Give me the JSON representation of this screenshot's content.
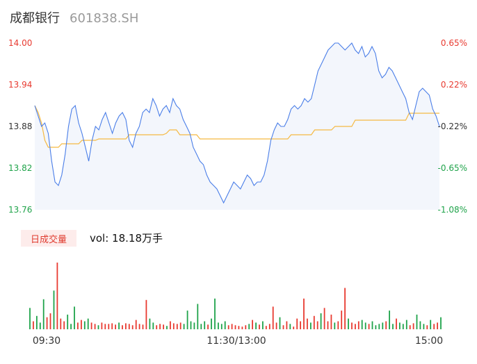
{
  "header": {
    "name": "成都银行",
    "code": "601838.SH"
  },
  "colors": {
    "price_line": "#4a7ee8",
    "avg_line": "#f5b942",
    "area_fill": "#f3f6fc",
    "up": "#e83a30",
    "down": "#1fa34a",
    "neutral": "#333333"
  },
  "volume": {
    "tag": "日成交量",
    "text": "vol: 18.18万手"
  },
  "chart_data": [
    {
      "type": "line",
      "series": [],
      "x": [
        0,
        1,
        2,
        3,
        4,
        5,
        6,
        7,
        8,
        9,
        10,
        11,
        12,
        13,
        14,
        15,
        16,
        17,
        18,
        19,
        20,
        21,
        22,
        23,
        24,
        25,
        26,
        27,
        28,
        29,
        30,
        31,
        32,
        33,
        34,
        35,
        36,
        37,
        38,
        39,
        40,
        41,
        42,
        43,
        44,
        45,
        46,
        47,
        48,
        49,
        50,
        51,
        52,
        53,
        54,
        55,
        56,
        57,
        58,
        59,
        60,
        61,
        62,
        63,
        64,
        65,
        66,
        67,
        68,
        69,
        70,
        71,
        72,
        73,
        74,
        75,
        76,
        77,
        78,
        79,
        80,
        81,
        82,
        83,
        84,
        85,
        86,
        87,
        88,
        89,
        90,
        91,
        92,
        93,
        94,
        95,
        96,
        97,
        98,
        99,
        100,
        101,
        102,
        103,
        104,
        105,
        106,
        107,
        108,
        109,
        110,
        111,
        112,
        113,
        114,
        115,
        116,
        117,
        118,
        119,
        120
      ],
      "price": [
        13.91,
        13.895,
        13.88,
        13.885,
        13.87,
        13.83,
        13.8,
        13.795,
        13.81,
        13.84,
        13.88,
        13.905,
        13.91,
        13.885,
        13.87,
        13.85,
        13.83,
        13.86,
        13.88,
        13.875,
        13.89,
        13.9,
        13.885,
        13.87,
        13.885,
        13.895,
        13.9,
        13.89,
        13.86,
        13.85,
        13.87,
        13.88,
        13.9,
        13.905,
        13.9,
        13.92,
        13.91,
        13.895,
        13.905,
        13.91,
        13.9,
        13.92,
        13.91,
        13.905,
        13.89,
        13.88,
        13.87,
        13.85,
        13.84,
        13.83,
        13.825,
        13.81,
        13.8,
        13.795,
        13.79,
        13.78,
        13.77,
        13.78,
        13.79,
        13.8,
        13.795,
        13.79,
        13.8,
        13.81,
        13.805,
        13.795,
        13.8,
        13.8,
        13.81,
        13.83,
        13.86,
        13.875,
        13.885,
        13.88,
        13.88,
        13.89,
        13.905,
        13.91,
        13.905,
        13.91,
        13.92,
        13.915,
        13.92,
        13.94,
        13.96,
        13.97,
        13.98,
        13.99,
        13.995,
        14.0,
        14.0,
        13.995,
        13.99,
        13.995,
        14.0,
        13.99,
        13.985,
        13.995,
        13.98,
        13.985,
        13.995,
        13.985,
        13.96,
        13.95,
        13.955,
        13.965,
        13.96,
        13.95,
        13.94,
        13.93,
        13.92,
        13.9,
        13.89,
        13.91,
        13.93,
        13.935,
        13.93,
        13.925,
        13.905,
        13.895,
        13.88
      ],
      "average": [
        13.91,
        13.9,
        13.885,
        13.86,
        13.85,
        13.85,
        13.85,
        13.85,
        13.855,
        13.855,
        13.855,
        13.855,
        13.855,
        13.855,
        13.86,
        13.86,
        13.86,
        13.86,
        13.86,
        13.862,
        13.862,
        13.862,
        13.862,
        13.862,
        13.862,
        13.862,
        13.862,
        13.862,
        13.868,
        13.868,
        13.868,
        13.868,
        13.868,
        13.868,
        13.868,
        13.868,
        13.868,
        13.868,
        13.868,
        13.87,
        13.875,
        13.875,
        13.875,
        13.868,
        13.868,
        13.868,
        13.868,
        13.868,
        13.868,
        13.862,
        13.862,
        13.862,
        13.862,
        13.862,
        13.862,
        13.862,
        13.862,
        13.862,
        13.862,
        13.862,
        13.862,
        13.862,
        13.862,
        13.862,
        13.862,
        13.862,
        13.862,
        13.862,
        13.862,
        13.862,
        13.862,
        13.862,
        13.862,
        13.862,
        13.862,
        13.862,
        13.868,
        13.868,
        13.868,
        13.868,
        13.868,
        13.868,
        13.868,
        13.875,
        13.875,
        13.875,
        13.875,
        13.875,
        13.875,
        13.88,
        13.88,
        13.88,
        13.88,
        13.88,
        13.88,
        13.889,
        13.889,
        13.889,
        13.889,
        13.889,
        13.889,
        13.889,
        13.889,
        13.889,
        13.889,
        13.889,
        13.889,
        13.889,
        13.889,
        13.889,
        13.889,
        13.899,
        13.899,
        13.899,
        13.899,
        13.899,
        13.899,
        13.899,
        13.899,
        13.899,
        13.899
      ],
      "ylim": [
        13.76,
        14.0
      ],
      "y_ticks_left": [
        "14.00",
        "13.94",
        "13.88",
        "13.82",
        "13.76"
      ],
      "y_ticks_right": [
        "0.65%",
        "0.22%",
        "-0.22%",
        "-0.65%",
        "-1.08%"
      ],
      "x_ticks": [
        "09:30",
        "11:30/13:00",
        "15:00"
      ]
    },
    {
      "type": "bar",
      "x": [
        0,
        1,
        2,
        3,
        4,
        5,
        6,
        7,
        8,
        9,
        10,
        11,
        12,
        13,
        14,
        15,
        16,
        17,
        18,
        19,
        20,
        21,
        22,
        23,
        24,
        25,
        26,
        27,
        28,
        29,
        30,
        31,
        32,
        33,
        34,
        35,
        36,
        37,
        38,
        39,
        40,
        41,
        42,
        43,
        44,
        45,
        46,
        47,
        48,
        49,
        50,
        51,
        52,
        53,
        54,
        55,
        56,
        57,
        58,
        59,
        60,
        61,
        62,
        63,
        64,
        65,
        66,
        67,
        68,
        69,
        70,
        71,
        72,
        73,
        74,
        75,
        76,
        77,
        78,
        79,
        80,
        81,
        82,
        83,
        84,
        85,
        86,
        87,
        88,
        89,
        90,
        91,
        92,
        93,
        94,
        95,
        96,
        97,
        98,
        99,
        100,
        101,
        102,
        103,
        104,
        105,
        106,
        107,
        108,
        109,
        110,
        111,
        112,
        113,
        114,
        115,
        116,
        117,
        118,
        119,
        120
      ],
      "values": [
        32,
        12,
        20,
        10,
        45,
        18,
        24,
        58,
        100,
        16,
        12,
        22,
        8,
        34,
        10,
        14,
        12,
        16,
        10,
        8,
        6,
        10,
        8,
        8,
        9,
        7,
        10,
        6,
        9,
        8,
        6,
        14,
        8,
        7,
        44,
        16,
        10,
        6,
        8,
        7,
        5,
        12,
        9,
        8,
        10,
        8,
        28,
        12,
        10,
        38,
        8,
        12,
        7,
        16,
        46,
        10,
        8,
        12,
        6,
        8,
        6,
        5,
        4,
        6,
        8,
        14,
        10,
        7,
        12,
        5,
        8,
        34,
        10,
        18,
        6,
        12,
        8,
        4,
        16,
        12,
        46,
        16,
        10,
        20,
        12,
        24,
        32,
        12,
        22,
        10,
        12,
        28,
        62,
        16,
        10,
        8,
        12,
        14,
        10,
        8,
        12,
        6,
        8,
        10,
        12,
        28,
        8,
        16,
        10,
        8,
        14,
        6,
        9,
        22,
        12,
        8,
        6,
        14,
        8,
        10,
        18
      ],
      "up": [
        false,
        true,
        false,
        false,
        false,
        true,
        true,
        false,
        true,
        true,
        true,
        false,
        false,
        false,
        true,
        true,
        false,
        false,
        true,
        true,
        false,
        true,
        true,
        true,
        true,
        true,
        false,
        true,
        true,
        true,
        true,
        true,
        true,
        true,
        true,
        false,
        false,
        true,
        true,
        true,
        false,
        true,
        true,
        true,
        true,
        false,
        false,
        false,
        false,
        false,
        false,
        false,
        true,
        false,
        false,
        false,
        false,
        false,
        true,
        true,
        true,
        true,
        true,
        true,
        false,
        true,
        false,
        true,
        false,
        true,
        true,
        true,
        true,
        false,
        true,
        true,
        false,
        true,
        true,
        true,
        true,
        true,
        false,
        true,
        true,
        false,
        true,
        true,
        true,
        false,
        true,
        true,
        true,
        false,
        true,
        true,
        true,
        false,
        false,
        true,
        false,
        false,
        false,
        false,
        true,
        false,
        false,
        true,
        false,
        false,
        false,
        true,
        true,
        false,
        false,
        false,
        true,
        false,
        true,
        true,
        false
      ],
      "ylim": [
        0,
        100
      ]
    }
  ]
}
